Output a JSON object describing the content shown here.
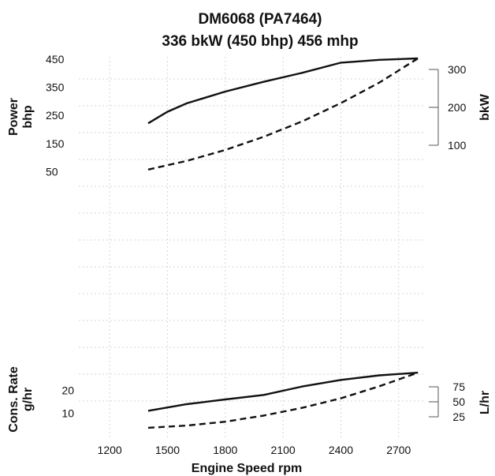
{
  "chart_data": [
    {
      "type": "line",
      "title": "DM6068 (PA7464)",
      "subtitle": "336 bkW (450 bhp) 456 mhp",
      "ylabel": "Power\nbhp",
      "y2label": "bkW",
      "x_ticks": [
        1200,
        1500,
        1800,
        2100,
        2400,
        2700
      ],
      "xlim": [
        1040,
        2840
      ],
      "y_ticks": [
        50,
        150,
        250,
        350,
        450
      ],
      "ylim": [
        20,
        470
      ],
      "y2_ticks": [
        100,
        200,
        300
      ],
      "grid": true,
      "series": [
        {
          "style": "solid",
          "x": [
            1400,
            1500,
            1600,
            1800,
            2000,
            2200,
            2400,
            2600,
            2800
          ],
          "y": [
            222,
            263,
            293,
            335,
            370,
            402,
            438,
            448,
            453
          ]
        },
        {
          "style": "dashed",
          "x": [
            1400,
            1600,
            1800,
            2000,
            2200,
            2400,
            2600,
            2800
          ],
          "y": [
            57,
            88,
            127,
            174,
            229,
            294,
            367,
            453
          ]
        }
      ]
    },
    {
      "type": "line",
      "ylabel": "Cons. Rate\ng/hr",
      "y2label": "L/hr",
      "xlabel": "Engine Speed rpm",
      "x_ticks": [
        1200,
        1500,
        1800,
        2100,
        2400,
        2700
      ],
      "xlim": [
        1040,
        2840
      ],
      "y_ticks": [
        10,
        20
      ],
      "ylim": [
        0,
        32
      ],
      "y2_ticks": [
        25,
        50,
        75
      ],
      "grid": true,
      "series": [
        {
          "style": "solid",
          "x": [
            1400,
            1600,
            1800,
            2000,
            2200,
            2400,
            2600,
            2800
          ],
          "y": [
            11,
            13.9,
            16,
            18,
            21.7,
            24.6,
            26.6,
            27.8
          ]
        },
        {
          "style": "dashed",
          "x": [
            1400,
            1600,
            1800,
            2000,
            2200,
            2400,
            2600,
            2800
          ],
          "y": [
            3.5,
            4.5,
            6.2,
            8.9,
            12.3,
            16.5,
            21.8,
            27.8
          ]
        }
      ]
    }
  ]
}
